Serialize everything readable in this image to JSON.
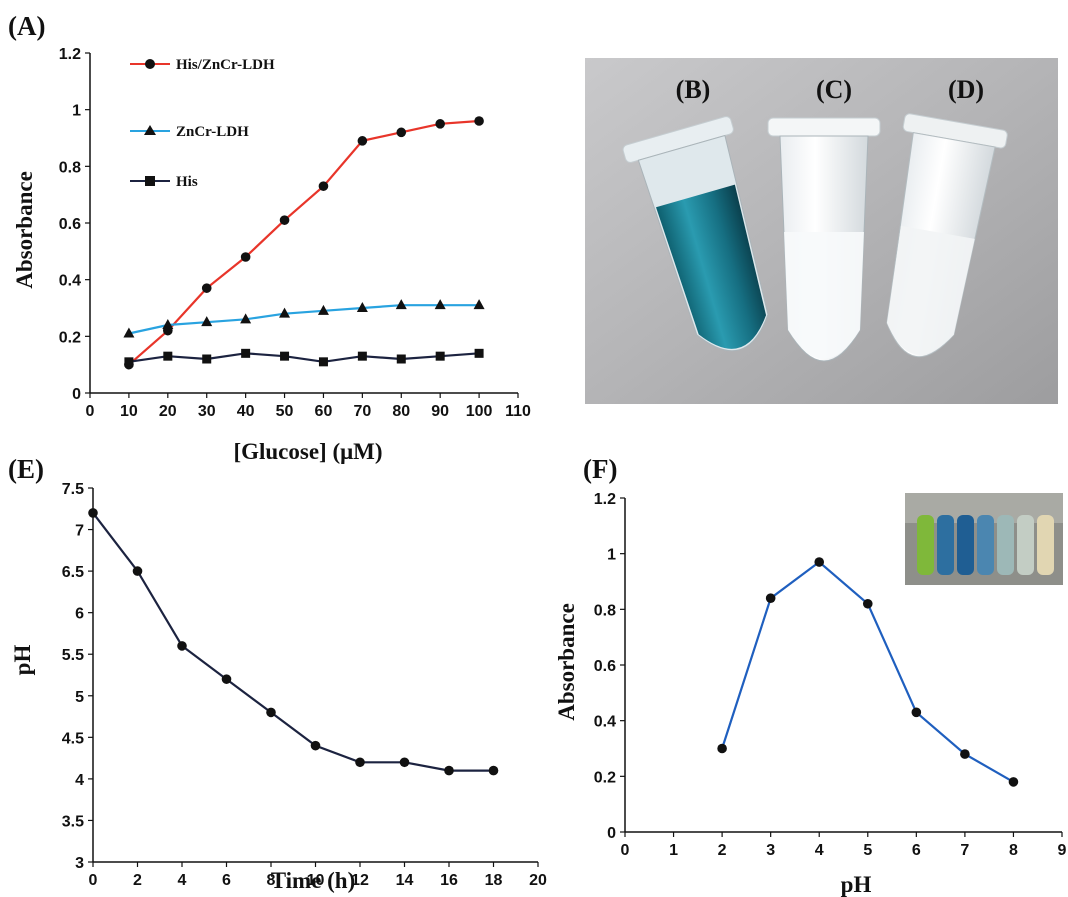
{
  "figure": {
    "photo": {
      "labels": [
        "(B)",
        "(C)",
        "(D)"
      ]
    }
  },
  "chart_data": [
    {
      "panel": "(A)",
      "type": "line",
      "xlabel": "[Glucose] (μM)",
      "ylabel": "Absorbance",
      "xlim": [
        0,
        110
      ],
      "ylim": [
        0,
        1.2
      ],
      "xticks": [
        0,
        10,
        20,
        30,
        40,
        50,
        60,
        70,
        80,
        90,
        100,
        110
      ],
      "yticks": [
        0,
        0.2,
        0.4,
        0.6,
        0.8,
        1,
        1.2
      ],
      "x": [
        10,
        20,
        30,
        40,
        50,
        60,
        70,
        80,
        90,
        100
      ],
      "grid": false,
      "legend": "top-left",
      "series": [
        {
          "name": "His/ZnCr-LDH",
          "marker": "circle",
          "color": "#e8352a",
          "values": [
            0.1,
            0.22,
            0.37,
            0.48,
            0.61,
            0.73,
            0.89,
            0.92,
            0.95,
            0.96
          ]
        },
        {
          "name": "ZnCr-LDH",
          "marker": "triangle",
          "color": "#29a3e0",
          "values": [
            0.21,
            0.24,
            0.25,
            0.26,
            0.28,
            0.29,
            0.3,
            0.31,
            0.31,
            0.31
          ]
        },
        {
          "name": "His",
          "marker": "square",
          "color": "#1c2340",
          "values": [
            0.11,
            0.13,
            0.12,
            0.14,
            0.13,
            0.11,
            0.13,
            0.12,
            0.13,
            0.14
          ]
        }
      ]
    },
    {
      "panel": "(E)",
      "type": "line",
      "xlabel": "Time (h)",
      "ylabel": "pH",
      "xlim": [
        0,
        20
      ],
      "ylim": [
        3,
        7.5
      ],
      "xticks": [
        0,
        2,
        4,
        6,
        8,
        10,
        12,
        14,
        16,
        18,
        20
      ],
      "yticks": [
        3,
        3.5,
        4,
        4.5,
        5,
        5.5,
        6,
        6.5,
        7,
        7.5
      ],
      "x": [
        0,
        2,
        4,
        6,
        8,
        10,
        12,
        14,
        16,
        18
      ],
      "grid": false,
      "series": [
        {
          "marker": "circle",
          "color": "#1c2340",
          "values": [
            7.2,
            6.5,
            5.6,
            5.2,
            4.8,
            4.4,
            4.2,
            4.2,
            4.1,
            4.1
          ]
        }
      ]
    },
    {
      "panel": "(F)",
      "type": "line",
      "xlabel": "pH",
      "ylabel": "Absorbance",
      "xlim": [
        0,
        9
      ],
      "ylim": [
        0,
        1.2
      ],
      "xticks": [
        0,
        1,
        2,
        3,
        4,
        5,
        6,
        7,
        8,
        9
      ],
      "yticks": [
        0,
        0.2,
        0.4,
        0.6,
        0.8,
        1,
        1.2
      ],
      "x": [
        2,
        3,
        4,
        5,
        6,
        7,
        8
      ],
      "grid": false,
      "series": [
        {
          "marker": "circle",
          "color": "#1f5fbf",
          "values": [
            0.3,
            0.84,
            0.97,
            0.82,
            0.43,
            0.28,
            0.18
          ]
        }
      ]
    }
  ]
}
